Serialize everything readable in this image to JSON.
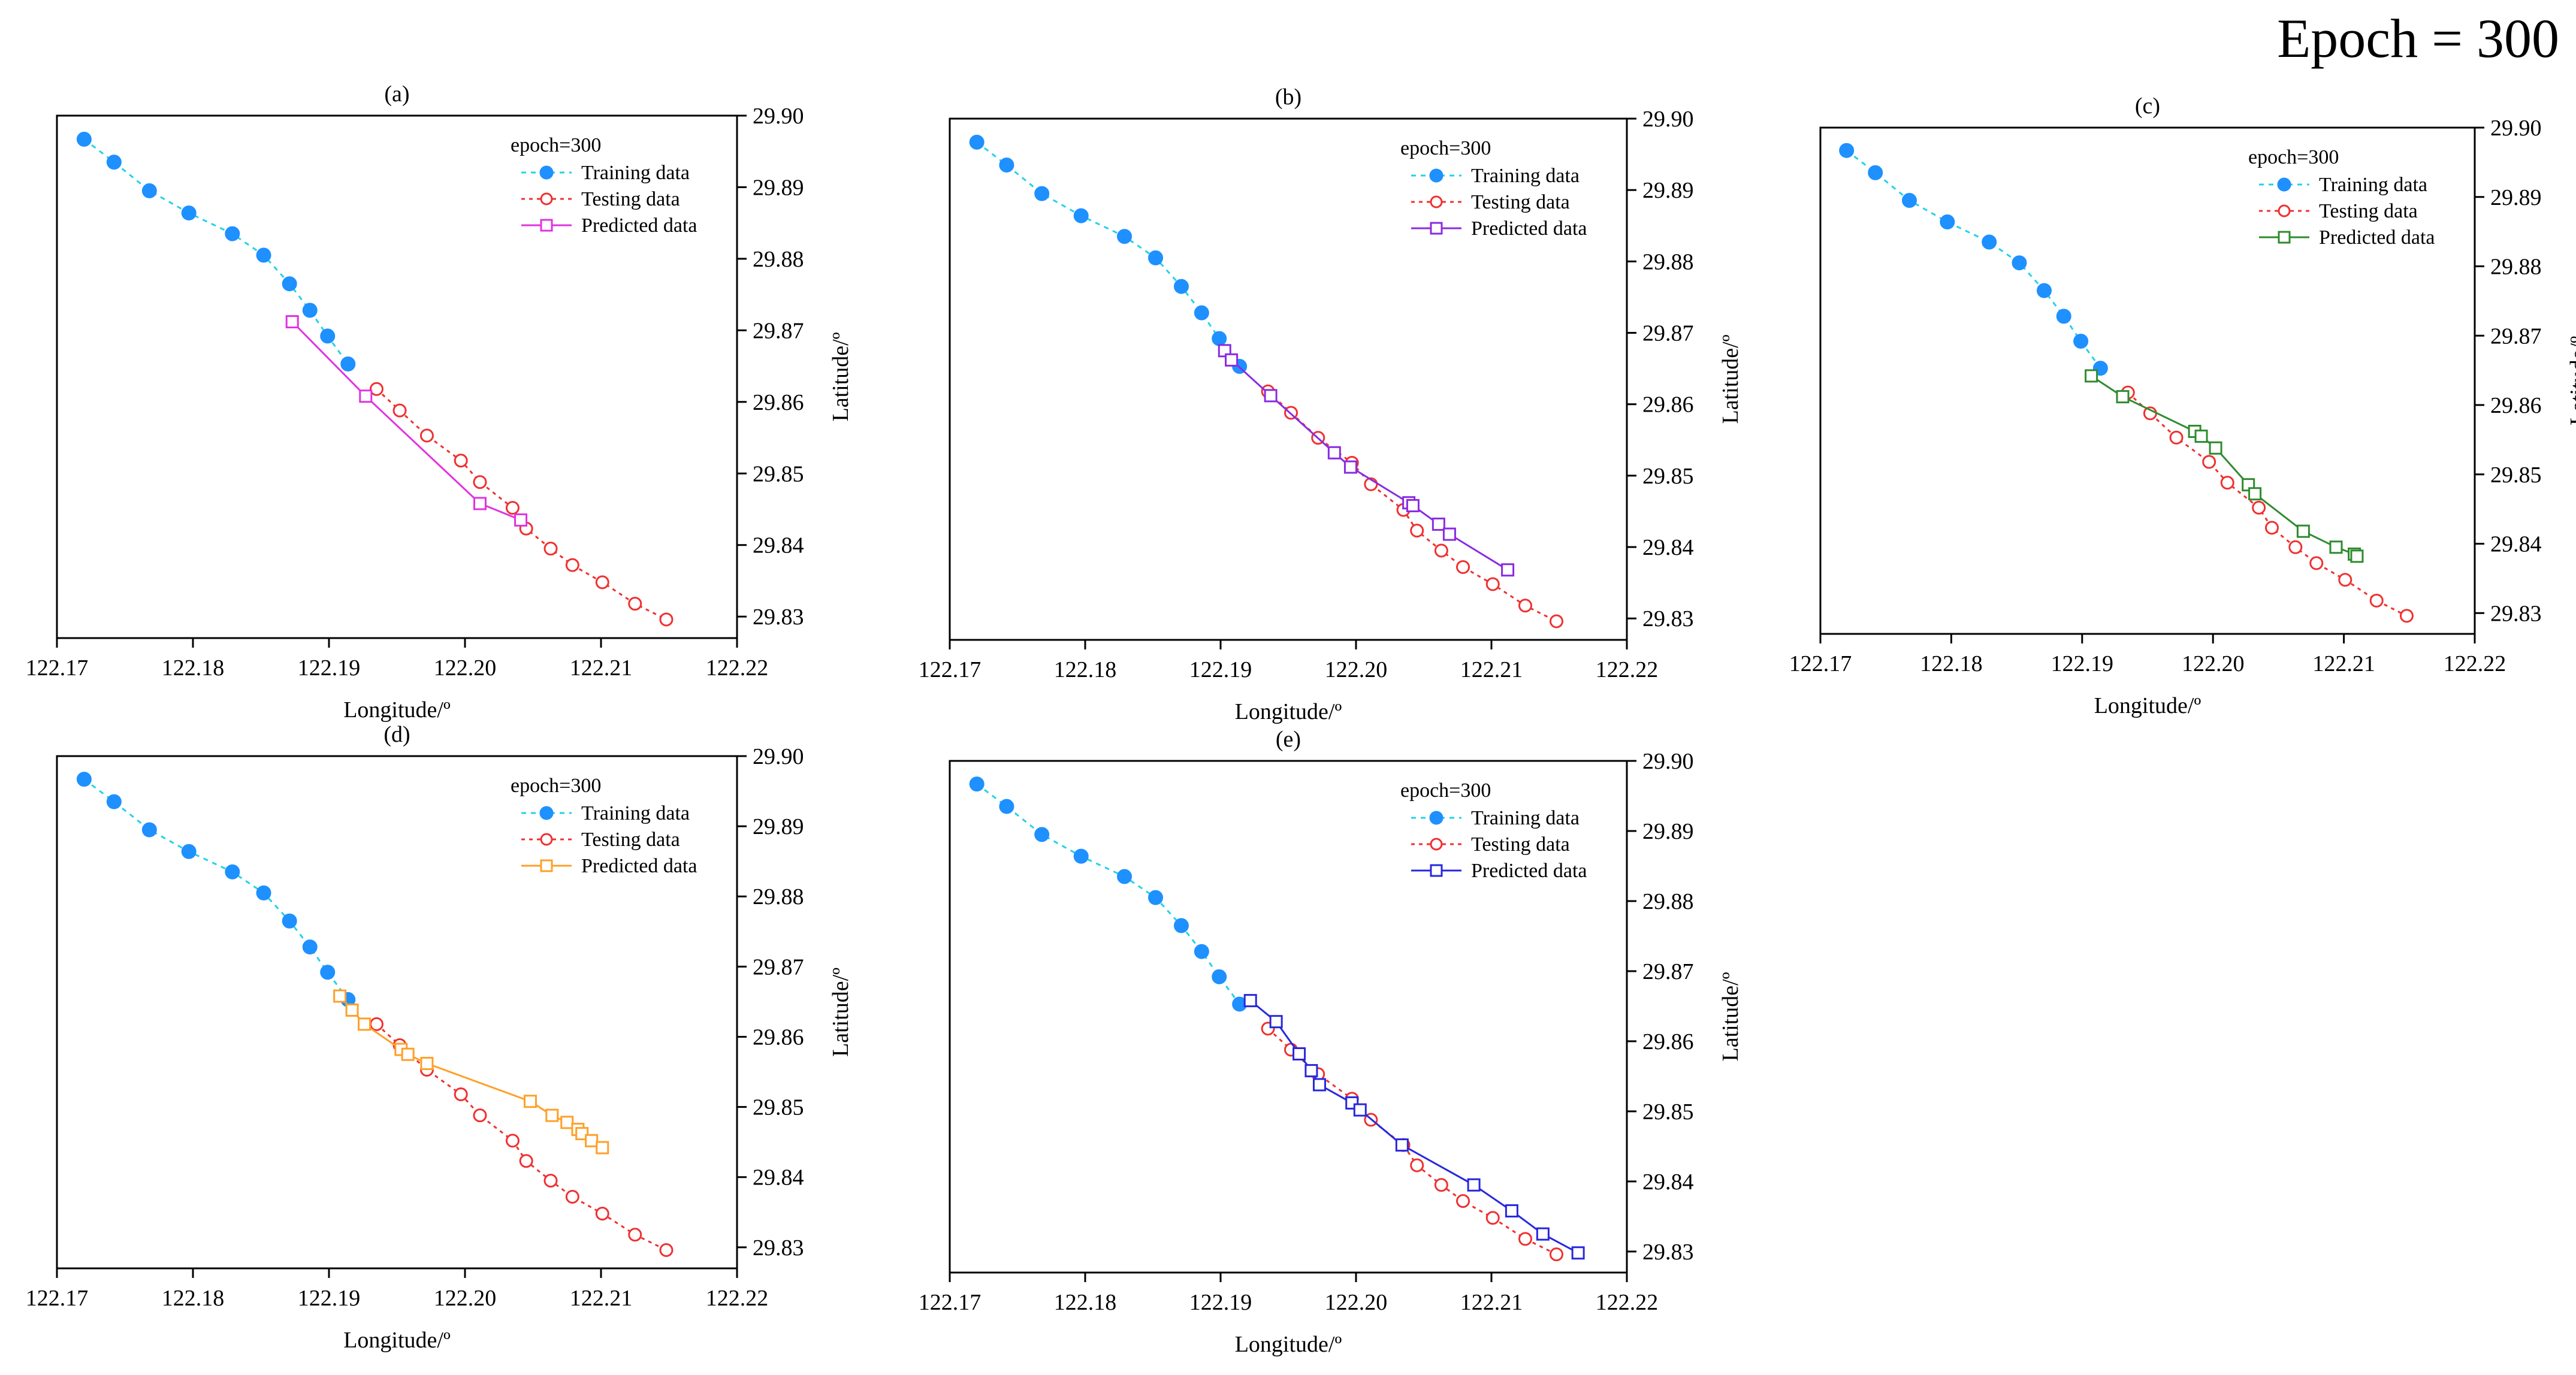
{
  "figure_title": "Epoch = 300",
  "colors": {
    "training": "#1E90FF",
    "training_line": "#22D3E6",
    "testing": "#F03030",
    "axis": "#000000"
  },
  "chart_data": [
    {
      "type": "line",
      "panel": "(a)",
      "title": "(a)",
      "legend_title": "epoch=300",
      "legend_position": "top-right",
      "xlabel": "Longitude/º",
      "ylabel": "Latitude/º",
      "xlim": [
        122.17,
        122.22
      ],
      "ylim": [
        29.827,
        29.9
      ],
      "xticks": [
        "122.17",
        "122.18",
        "122.19",
        "122.20",
        "122.21",
        "122.22"
      ],
      "yticks": [
        "29.83",
        "29.84",
        "29.85",
        "29.86",
        "29.87",
        "29.88",
        "29.89",
        "29.90"
      ],
      "predicted_color": "#E033E0",
      "series": [
        {
          "name": "Training data",
          "x": [
            122.172,
            122.1742,
            122.1768,
            122.1797,
            122.1829,
            122.1852,
            122.1871,
            122.1886,
            122.1899,
            122.1914
          ],
          "y": [
            29.8967,
            29.8935,
            29.8895,
            29.8864,
            29.8835,
            29.8805,
            29.8765,
            29.8728,
            29.8692,
            29.8653
          ]
        },
        {
          "name": "Testing data",
          "x": [
            122.1935,
            122.1952,
            122.1972,
            122.1997,
            122.2011,
            122.2035,
            122.2045,
            122.2063,
            122.2079,
            122.2101,
            122.2125,
            122.2148
          ],
          "y": [
            29.8618,
            29.8588,
            29.8553,
            29.8518,
            29.8488,
            29.8452,
            29.8423,
            29.8395,
            29.8372,
            29.8348,
            29.8318,
            29.8296
          ]
        },
        {
          "name": "Predicted data",
          "x": [
            122.1873,
            122.1927,
            122.2011,
            122.2041
          ],
          "y": [
            29.8712,
            29.8608,
            29.8458,
            29.8435
          ]
        }
      ]
    },
    {
      "type": "line",
      "panel": "(b)",
      "title": "(b)",
      "legend_title": "epoch=300",
      "legend_position": "top-right",
      "xlabel": "Longitude/º",
      "ylabel": "Latitude/º",
      "xlim": [
        122.17,
        122.22
      ],
      "ylim": [
        29.827,
        29.9
      ],
      "xticks": [
        "122.17",
        "122.18",
        "122.19",
        "122.20",
        "122.21",
        "122.22"
      ],
      "yticks": [
        "29.83",
        "29.84",
        "29.85",
        "29.86",
        "29.87",
        "29.88",
        "29.89",
        "29.90"
      ],
      "predicted_color": "#8A2BE2",
      "series": [
        {
          "name": "Training data",
          "x": [
            122.172,
            122.1742,
            122.1768,
            122.1797,
            122.1829,
            122.1852,
            122.1871,
            122.1886,
            122.1899,
            122.1914
          ],
          "y": [
            29.8967,
            29.8935,
            29.8895,
            29.8864,
            29.8835,
            29.8805,
            29.8765,
            29.8728,
            29.8692,
            29.8653
          ]
        },
        {
          "name": "Testing data",
          "x": [
            122.1935,
            122.1952,
            122.1972,
            122.1997,
            122.2011,
            122.2035,
            122.2045,
            122.2063,
            122.2079,
            122.2101,
            122.2125,
            122.2148
          ],
          "y": [
            29.8618,
            29.8588,
            29.8553,
            29.8518,
            29.8488,
            29.8452,
            29.8423,
            29.8395,
            29.8372,
            29.8348,
            29.8318,
            29.8296
          ]
        },
        {
          "name": "Predicted data",
          "x": [
            122.1903,
            122.1908,
            122.1937,
            122.1984,
            122.1996,
            122.2039,
            122.2042,
            122.2061,
            122.2069,
            122.2112
          ],
          "y": [
            29.8675,
            29.8662,
            29.8612,
            29.8532,
            29.8512,
            29.8462,
            29.8458,
            29.8432,
            29.8418,
            29.8368
          ]
        }
      ]
    },
    {
      "type": "line",
      "panel": "(c)",
      "title": "(c)",
      "legend_title": "epoch=300",
      "legend_position": "top-right",
      "xlabel": "Longitude/º",
      "ylabel": "Latitude/º",
      "xlim": [
        122.17,
        122.22
      ],
      "ylim": [
        29.827,
        29.9
      ],
      "xticks": [
        "122.17",
        "122.18",
        "122.19",
        "122.20",
        "122.21",
        "122.22"
      ],
      "yticks": [
        "29.83",
        "29.84",
        "29.85",
        "29.86",
        "29.87",
        "29.88",
        "29.89",
        "29.90"
      ],
      "predicted_color": "#2E8B2E",
      "series": [
        {
          "name": "Training data",
          "x": [
            122.172,
            122.1742,
            122.1768,
            122.1797,
            122.1829,
            122.1852,
            122.1871,
            122.1886,
            122.1899,
            122.1914
          ],
          "y": [
            29.8967,
            29.8935,
            29.8895,
            29.8864,
            29.8835,
            29.8805,
            29.8765,
            29.8728,
            29.8692,
            29.8653
          ]
        },
        {
          "name": "Testing data",
          "x": [
            122.1935,
            122.1952,
            122.1972,
            122.1997,
            122.2011,
            122.2035,
            122.2045,
            122.2063,
            122.2079,
            122.2101,
            122.2125,
            122.2148
          ],
          "y": [
            29.8618,
            29.8588,
            29.8553,
            29.8518,
            29.8488,
            29.8452,
            29.8423,
            29.8395,
            29.8372,
            29.8348,
            29.8318,
            29.8296
          ]
        },
        {
          "name": "Predicted data",
          "x": [
            122.1907,
            122.1931,
            122.1986,
            122.1991,
            122.2002,
            122.2027,
            122.2032,
            122.2069,
            122.2094,
            122.2108,
            122.211
          ],
          "y": [
            29.8642,
            29.8612,
            29.8562,
            29.8555,
            29.8538,
            29.8485,
            29.8472,
            29.8418,
            29.8395,
            29.8385,
            29.8382
          ]
        }
      ]
    },
    {
      "type": "line",
      "panel": "(d)",
      "title": "(d)",
      "legend_title": "epoch=300",
      "legend_position": "top-right",
      "xlabel": "Longitude/º",
      "ylabel": "Latitude/º",
      "xlim": [
        122.17,
        122.22
      ],
      "ylim": [
        29.827,
        29.9
      ],
      "xticks": [
        "122.17",
        "122.18",
        "122.19",
        "122.20",
        "122.21",
        "122.22"
      ],
      "yticks": [
        "29.83",
        "29.84",
        "29.85",
        "29.86",
        "29.87",
        "29.88",
        "29.89",
        "29.90"
      ],
      "predicted_color": "#FFA028",
      "series": [
        {
          "name": "Training data",
          "x": [
            122.172,
            122.1742,
            122.1768,
            122.1797,
            122.1829,
            122.1852,
            122.1871,
            122.1886,
            122.1899,
            122.1914
          ],
          "y": [
            29.8967,
            29.8935,
            29.8895,
            29.8864,
            29.8835,
            29.8805,
            29.8765,
            29.8728,
            29.8692,
            29.8653
          ]
        },
        {
          "name": "Testing data",
          "x": [
            122.1935,
            122.1952,
            122.1972,
            122.1997,
            122.2011,
            122.2035,
            122.2045,
            122.2063,
            122.2079,
            122.2101,
            122.2125,
            122.2148
          ],
          "y": [
            29.8618,
            29.8588,
            29.8553,
            29.8518,
            29.8488,
            29.8452,
            29.8423,
            29.8395,
            29.8372,
            29.8348,
            29.8318,
            29.8296
          ]
        },
        {
          "name": "Predicted data",
          "x": [
            122.1908,
            122.1917,
            122.1926,
            122.1953,
            122.1958,
            122.1972,
            122.2048,
            122.2064,
            122.2075,
            122.2083,
            122.2086,
            122.2093,
            122.2101
          ],
          "y": [
            29.8658,
            29.8638,
            29.8618,
            29.8582,
            29.8575,
            29.8562,
            29.8508,
            29.8488,
            29.8478,
            29.8468,
            29.8462,
            29.8452,
            29.8442
          ]
        }
      ]
    },
    {
      "type": "line",
      "panel": "(e)",
      "title": "(e)",
      "legend_title": "epoch=300",
      "legend_position": "top-right",
      "xlabel": "Longitude/º",
      "ylabel": "Latitude/º",
      "xlim": [
        122.17,
        122.22
      ],
      "ylim": [
        29.827,
        29.9
      ],
      "xticks": [
        "122.17",
        "122.18",
        "122.19",
        "122.20",
        "122.21",
        "122.22"
      ],
      "yticks": [
        "29.83",
        "29.84",
        "29.85",
        "29.86",
        "29.87",
        "29.88",
        "29.89",
        "29.90"
      ],
      "predicted_color": "#2828DC",
      "series": [
        {
          "name": "Training data",
          "x": [
            122.172,
            122.1742,
            122.1768,
            122.1797,
            122.1829,
            122.1852,
            122.1871,
            122.1886,
            122.1899,
            122.1914
          ],
          "y": [
            29.8967,
            29.8935,
            29.8895,
            29.8864,
            29.8835,
            29.8805,
            29.8765,
            29.8728,
            29.8692,
            29.8653
          ]
        },
        {
          "name": "Testing data",
          "x": [
            122.1935,
            122.1952,
            122.1972,
            122.1997,
            122.2011,
            122.2035,
            122.2045,
            122.2063,
            122.2079,
            122.2101,
            122.2125,
            122.2148
          ],
          "y": [
            29.8618,
            29.8588,
            29.8553,
            29.8518,
            29.8488,
            29.8452,
            29.8423,
            29.8395,
            29.8372,
            29.8348,
            29.8318,
            29.8296
          ]
        },
        {
          "name": "Predicted data",
          "x": [
            122.1922,
            122.1941,
            122.1958,
            122.1967,
            122.1973,
            122.1997,
            122.2003,
            122.2034,
            122.2087,
            122.2115,
            122.2138,
            122.2164
          ],
          "y": [
            29.8658,
            29.8628,
            29.8582,
            29.8558,
            29.8538,
            29.8512,
            29.8502,
            29.8452,
            29.8395,
            29.8358,
            29.8325,
            29.8298
          ]
        }
      ]
    }
  ]
}
